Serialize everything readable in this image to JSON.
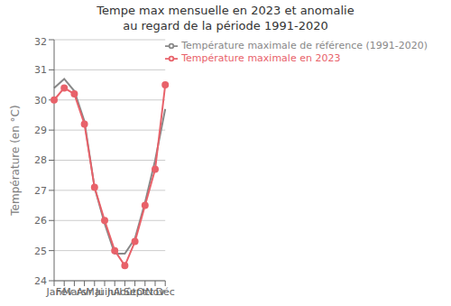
{
  "chart_data": {
    "type": "line",
    "title": "Tempe max mensuelle en 2023 et anomalie\nau regard de la période 1991-2020",
    "ylabel": "Température (en °C)",
    "categories": [
      "Jan",
      "Fév",
      "Mars",
      "Avr",
      "Mai",
      "Juin",
      "Juil",
      "Août",
      "Sept",
      "Oct",
      "Nov",
      "Déc"
    ],
    "series": [
      {
        "name": "Température maximale de référence (1991-2020)",
        "color": "#888888",
        "marker": "none",
        "values": [
          30.4,
          30.7,
          30.3,
          29.3,
          27.1,
          25.9,
          24.9,
          24.9,
          25.4,
          26.6,
          28.0,
          29.7
        ]
      },
      {
        "name": "Température maximale en 2023",
        "color": "#e8626a",
        "marker": "circle",
        "values": [
          30.0,
          30.4,
          30.2,
          29.2,
          27.1,
          26.0,
          25.0,
          24.5,
          25.3,
          26.5,
          27.7,
          30.5
        ]
      }
    ],
    "ylim": [
      24,
      32
    ],
    "yticks": [
      24,
      25,
      26,
      27,
      28,
      29,
      30,
      31,
      32
    ],
    "grid": true,
    "legend": "upper right"
  }
}
